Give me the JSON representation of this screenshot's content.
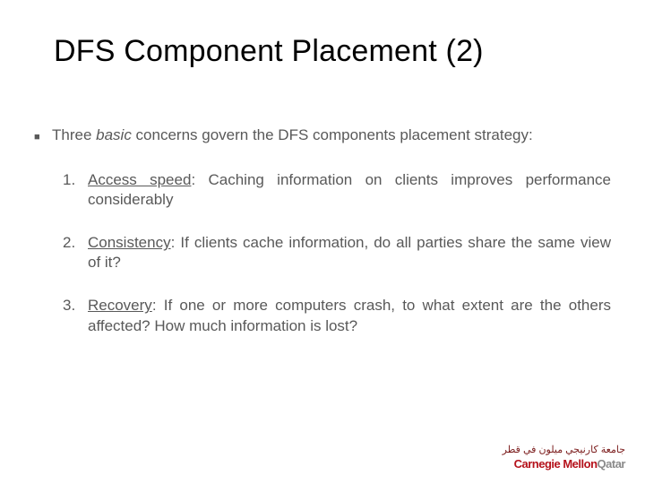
{
  "title": "DFS Component Placement (2)",
  "intro": {
    "prefix": "Three ",
    "italic": "basic",
    "rest": " concerns govern the DFS components placement strategy:"
  },
  "items": [
    {
      "num": "1.",
      "label": "Access speed",
      "sep": ": ",
      "text": "Caching information on clients improves performance considerably"
    },
    {
      "num": "2.",
      "label": "Consistency",
      "sep": ": ",
      "text": "If clients cache information, do all parties share the same view of it?"
    },
    {
      "num": "3.",
      "label": "Recovery",
      "sep": ": ",
      "text": "If one or more computers crash, to what extent are the others affected? How much information is lost?"
    }
  ],
  "logo": {
    "ar": "جامعة كارنيجي ميلون في قطر",
    "en1": "Carnegie Mellon",
    "en2": "Qatar"
  },
  "colors": {
    "title": "#000000",
    "body": "#595959",
    "accent_red": "#b5121b",
    "accent_grey": "#8a8a8a"
  }
}
